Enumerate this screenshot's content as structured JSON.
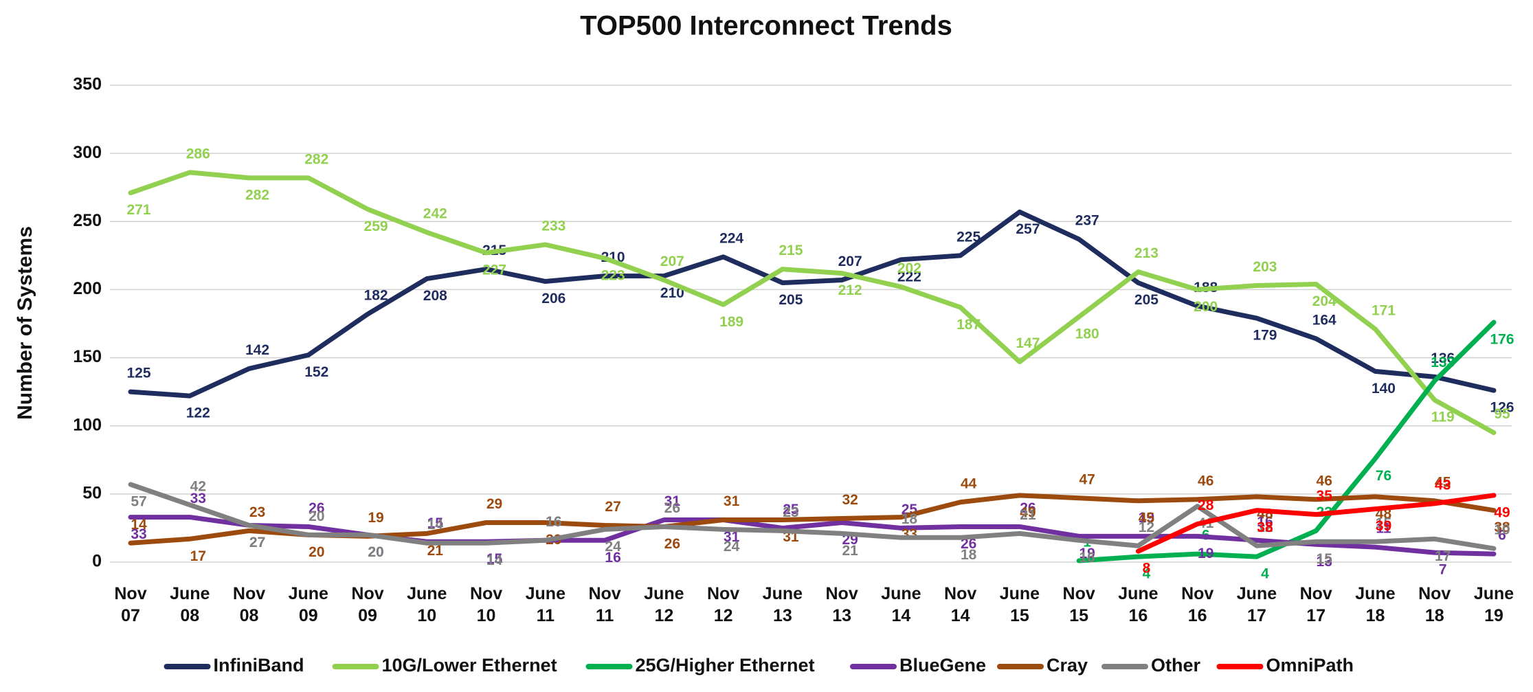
{
  "chart_data": {
    "type": "line",
    "title": "TOP500 Interconnect Trends",
    "y_label": "Number of Systems",
    "categories": [
      "Nov 07",
      "June 08",
      "Nov 08",
      "June 09",
      "Nov 09",
      "June 10",
      "Nov 10",
      "June 11",
      "Nov 11",
      "June 12",
      "Nov 12",
      "June 13",
      "Nov 13",
      "June 14",
      "Nov 14",
      "June 15",
      "Nov 15",
      "June 16",
      "Nov 16",
      "June 17",
      "Nov 17",
      "June 18",
      "Nov 18",
      "June 19"
    ],
    "ylim": [
      0,
      350
    ],
    "yticks": [
      0,
      50,
      100,
      150,
      200,
      250,
      300,
      350
    ],
    "grid": true,
    "legend": "bottom",
    "series": [
      {
        "name": "InfiniBand",
        "color": "#1f2d5e",
        "values": [
          125,
          122,
          142,
          152,
          182,
          208,
          215,
          206,
          210,
          210,
          224,
          205,
          207,
          222,
          225,
          257,
          237,
          205,
          188,
          179,
          164,
          140,
          136,
          126
        ]
      },
      {
        "name": "10G/Lower Ethernet",
        "color": "#92d050",
        "values": [
          271,
          286,
          282,
          282,
          259,
          242,
          227,
          233,
          223,
          207,
          189,
          215,
          212,
          202,
          187,
          147,
          180,
          213,
          200,
          203,
          204,
          171,
          119,
          95
        ]
      },
      {
        "name": "25G/Higher Ethernet",
        "color": "#00b050",
        "values": [
          null,
          null,
          null,
          null,
          null,
          null,
          null,
          null,
          null,
          null,
          null,
          null,
          null,
          null,
          null,
          null,
          1,
          4,
          6,
          4,
          23,
          76,
          133,
          176
        ]
      },
      {
        "name": "BlueGene",
        "color": "#7030a0",
        "values": [
          33,
          33,
          27,
          26,
          20,
          15,
          15,
          16,
          16,
          31,
          31,
          25,
          29,
          25,
          26,
          26,
          19,
          19,
          19,
          16,
          13,
          11,
          7,
          6
        ]
      },
      {
        "name": "Cray",
        "color": "#9c4a0e",
        "values": [
          14,
          17,
          23,
          20,
          19,
          21,
          29,
          29,
          27,
          26,
          31,
          31,
          32,
          33,
          44,
          49,
          47,
          45,
          46,
          48,
          46,
          48,
          45,
          38
        ]
      },
      {
        "name": "Other",
        "color": "#808080",
        "values": [
          57,
          42,
          27,
          20,
          20,
          14,
          14,
          16,
          24,
          26,
          24,
          23,
          21,
          18,
          18,
          21,
          16,
          12,
          41,
          12,
          15,
          15,
          17,
          10
        ]
      },
      {
        "name": "OmniPath",
        "color": "#ff0000",
        "values": [
          null,
          null,
          null,
          null,
          null,
          null,
          null,
          null,
          null,
          null,
          null,
          null,
          null,
          null,
          null,
          null,
          null,
          8,
          28,
          38,
          35,
          39,
          43,
          49
        ]
      }
    ]
  }
}
